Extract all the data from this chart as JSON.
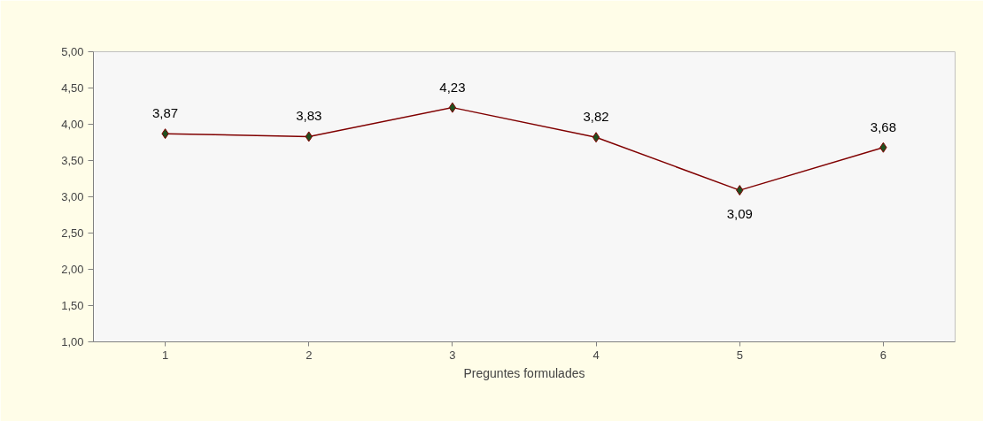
{
  "chart_data": {
    "type": "line",
    "xlabel": "Preguntes formulades",
    "categories": [
      "1",
      "2",
      "3",
      "4",
      "5",
      "6"
    ],
    "series": [
      {
        "color": "#800000",
        "values": [
          3.87,
          3.83,
          4.23,
          3.82,
          3.09,
          3.68
        ],
        "value_labels": [
          "3,87",
          "3,83",
          "4,23",
          "3,82",
          "3,09",
          "3,68"
        ]
      }
    ],
    "ylim": [
      1,
      5
    ],
    "yticks": [
      {
        "value": 1,
        "label": "1,00"
      },
      {
        "value": 1.5,
        "label": "1,50"
      },
      {
        "value": 2,
        "label": "2,00"
      },
      {
        "value": 2.5,
        "label": "2,50"
      },
      {
        "value": 3,
        "label": "3,00"
      },
      {
        "value": 3.5,
        "label": "3,50"
      },
      {
        "value": 4,
        "label": "4,00"
      },
      {
        "value": 4.5,
        "label": "4,50"
      },
      {
        "value": 5,
        "label": "5,00"
      }
    ],
    "marker": "diamond",
    "line_style": "solid",
    "grid": false
  }
}
